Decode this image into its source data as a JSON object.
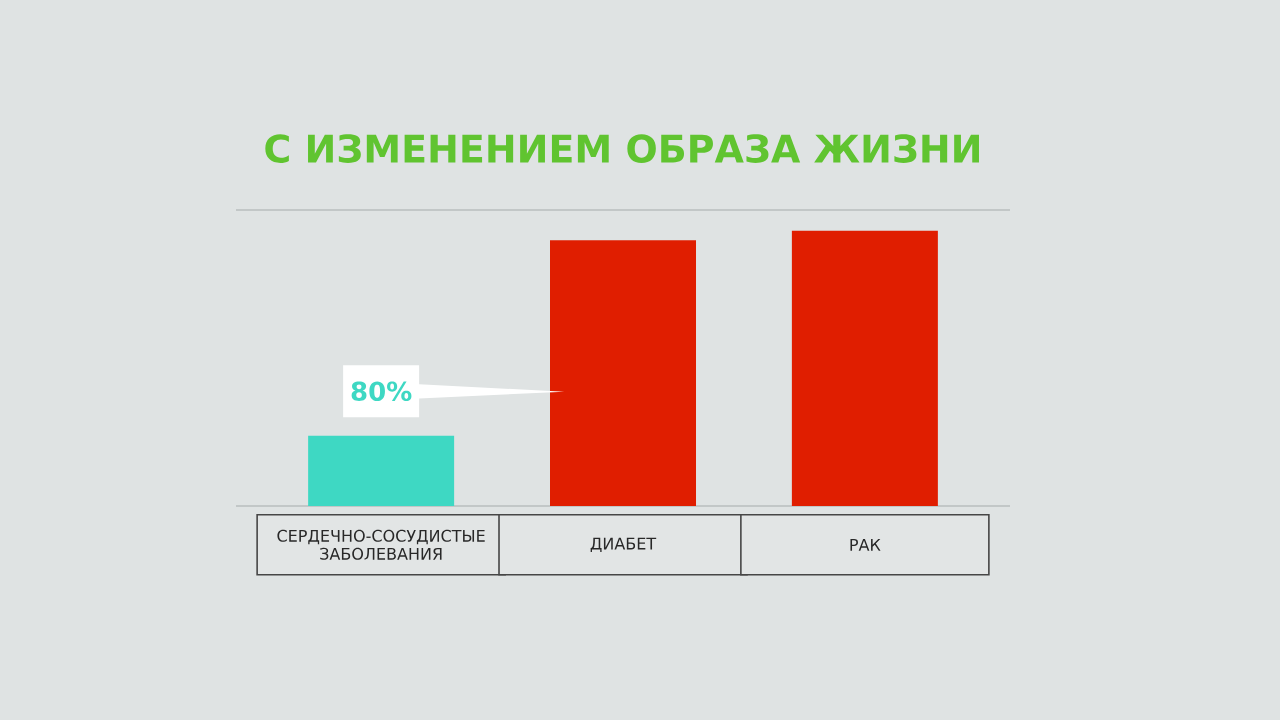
{
  "chart_data": {
    "type": "bar",
    "title": "С ИЗМЕНЕНИЕМ ОБРАЗА ЖИЗНИ",
    "categories": [
      "СЕРДЕЧНО-СОСУДИСТЫЕ ЗАБОЛЕВАНИЯ",
      "ДИАБЕТ",
      "РАК"
    ],
    "values": [
      80,
      302,
      313
    ],
    "colors": [
      "#3ed8c3",
      "#e01e00",
      "#e01e00"
    ],
    "value_labels": [
      "80%",
      null,
      null
    ]
  }
}
